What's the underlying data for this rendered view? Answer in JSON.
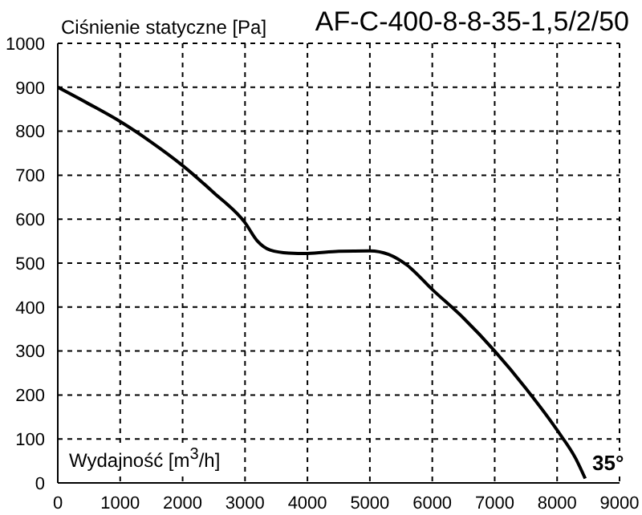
{
  "chart_data": {
    "type": "line",
    "title": "AF-C-400-8-8-35-1,5/2/50",
    "ylabel": "Ciśnienie statyczne [Pa]",
    "xlabel": "Wydajność [m$^{3}$/h]",
    "annotations": [
      "35°"
    ],
    "x": [
      0,
      500,
      1000,
      1500,
      2000,
      2500,
      3000,
      3200,
      3400,
      3700,
      4000,
      4500,
      5000,
      5300,
      5600,
      6000,
      6500,
      7000,
      7500,
      8000,
      8300,
      8450
    ],
    "values": [
      900,
      862,
      822,
      775,
      722,
      660,
      592,
      550,
      530,
      523,
      522,
      527,
      528,
      520,
      495,
      440,
      375,
      300,
      215,
      120,
      55,
      10
    ],
    "color": "#000000",
    "line_style": "solid",
    "marker": "none",
    "xlim": [
      0,
      9000
    ],
    "xticks": [
      0,
      1000,
      2000,
      3000,
      4000,
      5000,
      6000,
      7000,
      8000,
      9000
    ],
    "ylim": [
      0,
      1000
    ],
    "yticks": [
      0,
      100,
      200,
      300,
      400,
      500,
      600,
      700,
      800,
      900,
      1000
    ],
    "grid": true
  }
}
